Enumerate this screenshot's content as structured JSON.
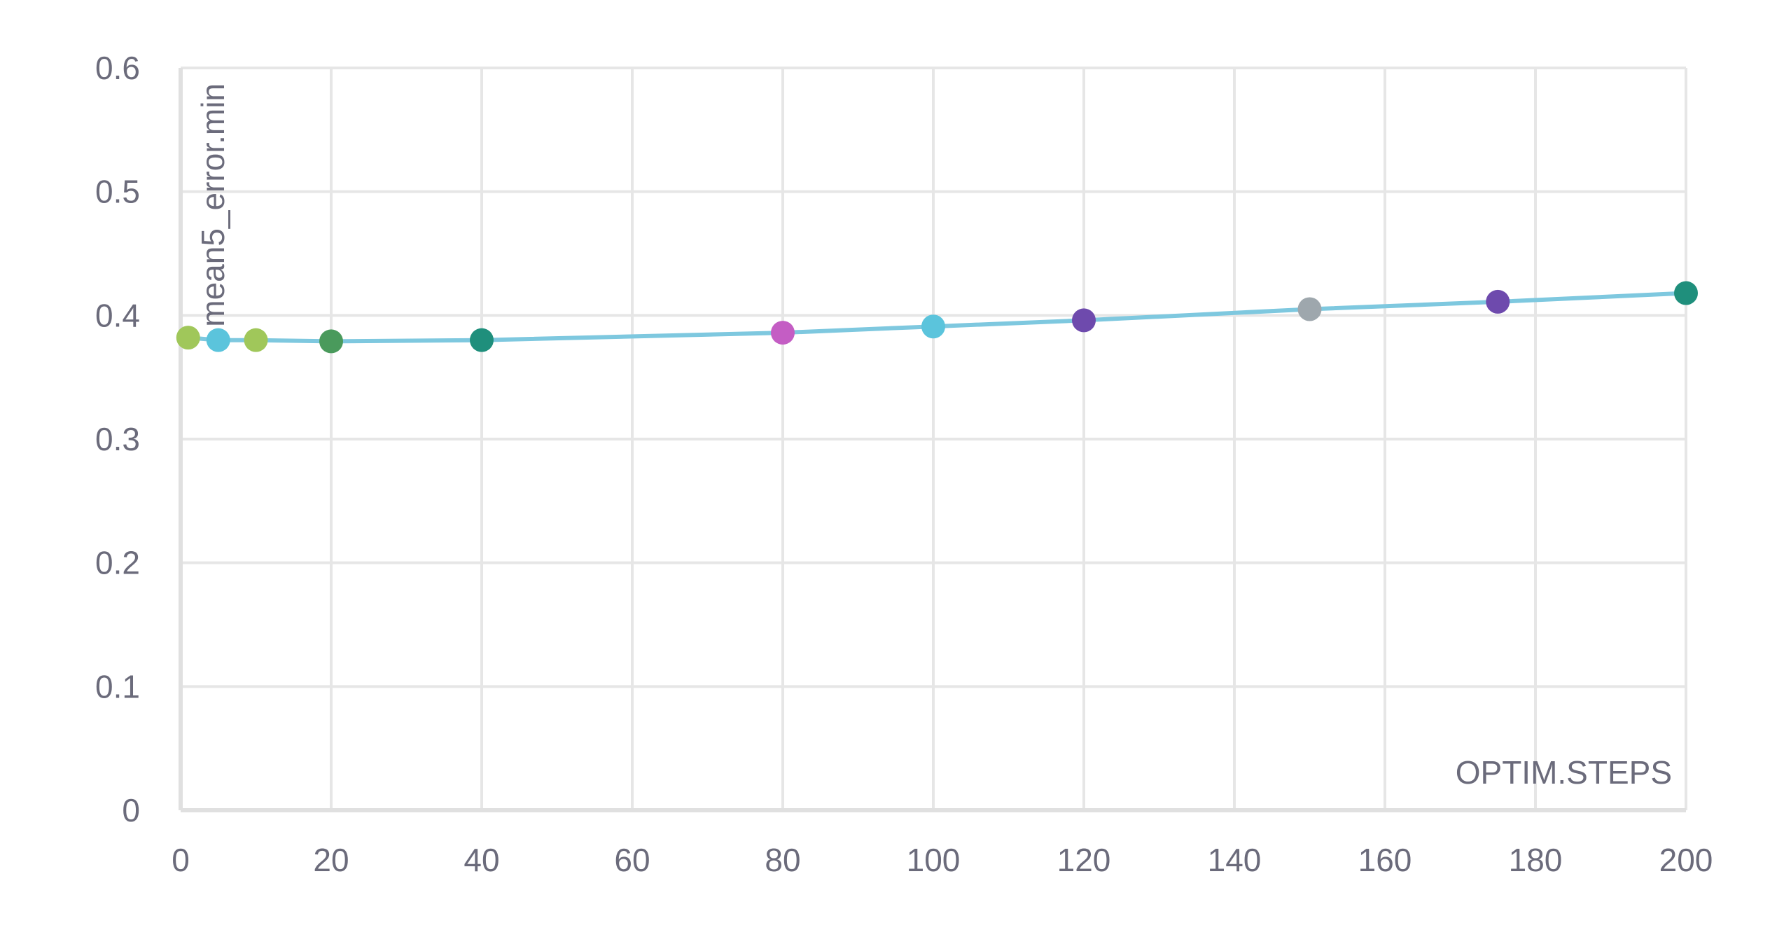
{
  "chart_data": {
    "type": "line",
    "xlabel": "OPTIM.STEPS",
    "ylabel": "mean5_error.min",
    "xlim": [
      0,
      200
    ],
    "ylim": [
      0,
      0.6
    ],
    "x_ticks": [
      "0",
      "20",
      "40",
      "60",
      "80",
      "100",
      "120",
      "140",
      "160",
      "180",
      "200"
    ],
    "y_ticks": [
      "0",
      "0.1",
      "0.2",
      "0.3",
      "0.4",
      "0.5",
      "0.6"
    ],
    "grid": true,
    "line_color": "#7ec8df",
    "points": [
      {
        "x": 1,
        "y": 0.382,
        "color": "#a0c75a"
      },
      {
        "x": 5,
        "y": 0.38,
        "color": "#5bc4dc"
      },
      {
        "x": 10,
        "y": 0.38,
        "color": "#a0c75a"
      },
      {
        "x": 20,
        "y": 0.379,
        "color": "#4a9a5c"
      },
      {
        "x": 40,
        "y": 0.38,
        "color": "#1f8f7c"
      },
      {
        "x": 80,
        "y": 0.386,
        "color": "#c45dc4"
      },
      {
        "x": 100,
        "y": 0.391,
        "color": "#5bc4dc"
      },
      {
        "x": 120,
        "y": 0.396,
        "color": "#6e4aad"
      },
      {
        "x": 150,
        "y": 0.405,
        "color": "#9ea7ad"
      },
      {
        "x": 175,
        "y": 0.411,
        "color": "#6e4aad"
      },
      {
        "x": 200,
        "y": 0.418,
        "color": "#1f8f7c"
      }
    ]
  }
}
